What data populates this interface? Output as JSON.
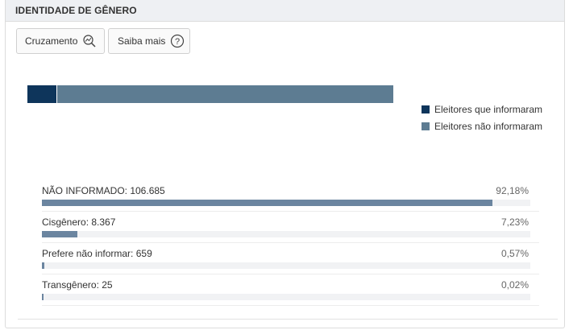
{
  "panel": {
    "title": "IDENTIDADE DE GÊNERO"
  },
  "toolbar": {
    "cross_label": "Cruzamento",
    "cross_icon": "zoom-chart-icon",
    "info_label": "Saiba mais",
    "info_icon": "question-circle-icon"
  },
  "stacked_bar": {
    "informed_pct": 7.82,
    "not_informed_pct": 92.18
  },
  "legend": {
    "informed": {
      "label": "Eleitores que informaram",
      "color": "#0e355b"
    },
    "not_informed": {
      "label": "Eleitores não informaram",
      "color": "#5d7c92"
    }
  },
  "rows": [
    {
      "label": "NÃO INFORMADO: 106.685",
      "pct": "92,18%",
      "value": 92.18
    },
    {
      "label": "Cisgênero: 8.367",
      "pct": "7,23%",
      "value": 7.23
    },
    {
      "label": "Prefere não informar: 659",
      "pct": "0,57%",
      "value": 0.57
    },
    {
      "label": "Transgênero: 25",
      "pct": "0,02%",
      "value": 0.02
    }
  ]
}
